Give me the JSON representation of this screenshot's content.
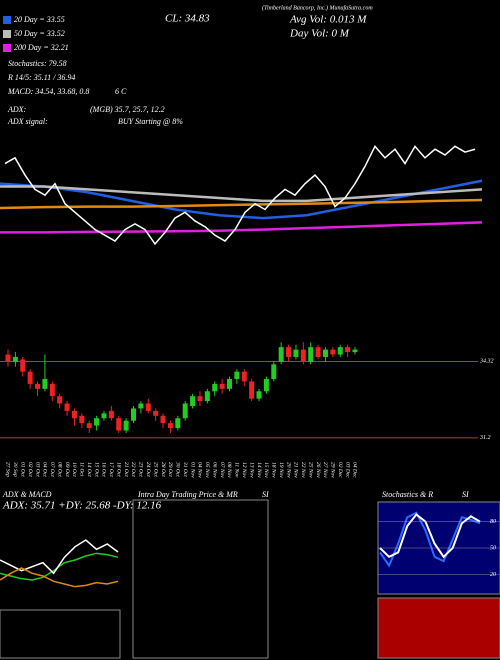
{
  "chart_data": [
    {
      "type": "line",
      "header": "(Timberland Bancorp, Inc.) MunafaSutra.com",
      "close_label": "CL: 34.83",
      "avg_vol": "Avg Vol: 0.013 M",
      "day_vol": "Day Vol: 0  M",
      "annotations": [
        "Stochastics: 79.58",
        "R 14/5: 35.11 / 36.94",
        "MACD: 34.54, 33.68, 0.8",
        "6   C",
        "ADX:",
        "(MGB) 35.7, 25.7, 12.2",
        "ADX  signal:",
        "BUY Starting @ 8%"
      ],
      "ylim": [
        28.5,
        40
      ],
      "price_color": "#ffffff",
      "series": [
        {
          "name": "20 Day = 33.55",
          "color": "#1f5fe0",
          "values": [
            33.6,
            33.5,
            33.3,
            33.0,
            32.7,
            32.5,
            32.4,
            32.5,
            32.8,
            33.1,
            33.4,
            33.7
          ]
        },
        {
          "name": "50 Day = 33.52",
          "color": "#bbbbbb",
          "values": [
            33.5,
            33.5,
            33.4,
            33.3,
            33.2,
            33.1,
            33.0,
            33.0,
            33.1,
            33.2,
            33.3,
            33.4
          ]
        },
        {
          "color": "#e08a10",
          "values": [
            32.75,
            32.78,
            32.8,
            32.8,
            32.82,
            32.85,
            32.88,
            32.9,
            32.93,
            32.96,
            33.0,
            33.03
          ]
        },
        {
          "name": "200 Day = 32.21",
          "color": "#e020e0",
          "values": [
            31.9,
            31.9,
            31.92,
            31.93,
            31.94,
            31.96,
            32.0,
            32.05,
            32.1,
            32.15,
            32.2,
            32.25
          ]
        }
      ]
    },
    {
      "type": "candlestick",
      "categories": [
        "27 Sep",
        "30 Sep",
        "01 Oct",
        "02 Oct",
        "03 Oct",
        "04 Oct",
        "07 Oct",
        "08 Oct",
        "09 Oct",
        "10 Oct",
        "11 Oct",
        "14 Oct",
        "15 Oct",
        "16 Oct",
        "17 Oct",
        "18 Oct",
        "21 Oct",
        "22 Oct",
        "23 Oct",
        "24 Oct",
        "25 Oct",
        "28 Oct",
        "29 Oct",
        "30 Oct",
        "31 Oct",
        "01 Nov",
        "04 Nov",
        "05 Nov",
        "06 Nov",
        "07 Nov",
        "08 Nov",
        "11 Nov",
        "12 Nov",
        "13 Nov",
        "14 Nov",
        "15 Nov",
        "18 Nov",
        "19 Nov",
        "20 Nov",
        "21 Nov",
        "22 Nov",
        "25 Nov",
        "26 Nov",
        "27 Nov",
        "29 Nov",
        "02 Dec",
        "03 Dec",
        "04 Dec"
      ],
      "open": [
        34.6,
        34.3,
        34.4,
        33.9,
        33.4,
        33.2,
        33.4,
        32.9,
        32.6,
        32.3,
        32.1,
        31.8,
        31.7,
        32.0,
        32.3,
        32.0,
        31.5,
        31.9,
        32.4,
        32.6,
        32.3,
        32.1,
        31.8,
        31.6,
        32.0,
        32.5,
        32.9,
        32.7,
        33.1,
        33.4,
        33.2,
        33.6,
        33.9,
        33.5,
        32.8,
        33.1,
        33.6,
        34.3,
        34.9,
        34.5,
        34.8,
        34.3,
        34.9,
        34.5,
        34.8,
        34.6,
        34.9,
        34.7
      ],
      "close": [
        34.3,
        34.5,
        33.9,
        33.4,
        33.2,
        33.6,
        32.9,
        32.6,
        32.3,
        32.0,
        31.8,
        31.6,
        32.0,
        32.2,
        32.0,
        31.5,
        31.9,
        32.4,
        32.6,
        32.3,
        32.1,
        31.8,
        31.6,
        32.0,
        32.6,
        32.9,
        32.7,
        33.1,
        33.4,
        33.2,
        33.6,
        33.9,
        33.5,
        32.8,
        33.1,
        33.6,
        34.2,
        34.9,
        34.5,
        34.8,
        34.3,
        34.9,
        34.5,
        34.8,
        34.6,
        34.9,
        34.7,
        34.8
      ],
      "high": [
        34.8,
        34.7,
        34.5,
        34.0,
        33.5,
        34.6,
        33.5,
        33.0,
        32.7,
        32.4,
        32.2,
        31.9,
        32.1,
        32.3,
        32.5,
        32.1,
        32.0,
        32.5,
        32.7,
        32.8,
        32.4,
        32.2,
        31.9,
        32.1,
        32.7,
        33.0,
        33.1,
        33.2,
        33.5,
        33.6,
        33.7,
        34.0,
        34.0,
        33.6,
        33.2,
        33.7,
        34.3,
        35.1,
        35.0,
        35.0,
        35.1,
        35.1,
        35.0,
        34.9,
        34.9,
        35.0,
        35.0,
        34.9
      ],
      "low": [
        34.1,
        34.1,
        33.7,
        33.2,
        32.9,
        33.1,
        32.7,
        32.4,
        32.1,
        31.7,
        31.6,
        31.4,
        31.5,
        31.9,
        31.9,
        31.4,
        31.4,
        31.8,
        32.2,
        32.2,
        31.9,
        31.6,
        31.4,
        31.5,
        31.9,
        32.4,
        32.5,
        32.6,
        32.9,
        33.0,
        33.1,
        33.4,
        33.3,
        32.7,
        32.7,
        33.0,
        33.5,
        34.2,
        34.3,
        34.4,
        34.2,
        34.2,
        34.4,
        34.3,
        34.5,
        34.5,
        34.5,
        34.6
      ],
      "up_color": "#22cc22",
      "down_color": "#ee2222",
      "ylim": [
        30.5,
        35.6
      ],
      "yticks": [
        34.32,
        31.2
      ]
    },
    {
      "type": "line",
      "title": "ADX & MACD",
      "subtitle": "ADX: 35.71 +DY: 25.68 -DY: 12.16",
      "ylim": [
        0,
        60
      ],
      "series": [
        {
          "color": "#22cc22",
          "values": [
            20,
            18,
            16,
            15,
            17,
            22,
            28,
            30,
            33,
            35,
            34,
            32
          ]
        },
        {
          "color": "#ffffff",
          "values": [
            30,
            26,
            22,
            25,
            28,
            20,
            32,
            40,
            45,
            38,
            42,
            36
          ]
        },
        {
          "color": "#e08a10",
          "values": [
            15,
            20,
            24,
            20,
            18,
            14,
            12,
            10,
            11,
            13,
            12,
            14
          ]
        }
      ]
    },
    {
      "type": "empty",
      "title": "Intra Day Trading Price  & MR",
      "subtitle": "SI"
    },
    {
      "type": "line",
      "title": "Stochastics & R",
      "subtitle": "SI",
      "ylim": [
        0,
        100
      ],
      "yticks": [
        80,
        50,
        20
      ],
      "series": [
        {
          "color": "#2a6cff",
          "values": [
            45,
            30,
            55,
            85,
            90,
            70,
            40,
            35,
            60,
            85,
            82,
            78
          ]
        },
        {
          "color": "#ffffff",
          "values": [
            50,
            40,
            45,
            75,
            88,
            80,
            55,
            40,
            50,
            78,
            86,
            80
          ]
        }
      ]
    }
  ]
}
